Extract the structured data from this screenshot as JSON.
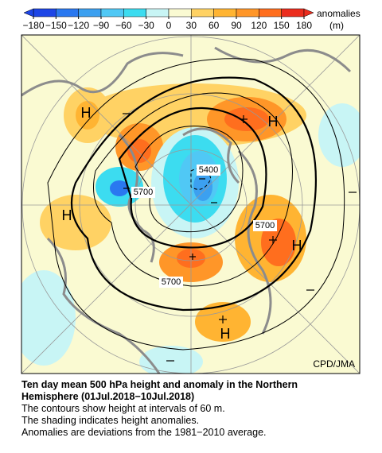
{
  "colorbar": {
    "ticks": [
      {
        "value": -180,
        "label": "−180"
      },
      {
        "value": -150,
        "label": "−150"
      },
      {
        "value": -120,
        "label": "−120"
      },
      {
        "value": -90,
        "label": "−90"
      },
      {
        "value": -60,
        "label": "−60"
      },
      {
        "value": -30,
        "label": "−30"
      },
      0,
      30,
      60,
      90,
      120,
      150,
      180
    ],
    "colors": [
      "#1e46e6",
      "#2a78f0",
      "#3ca0f0",
      "#50c8f5",
      "#3cdcf0",
      "#c8f5f5",
      "#fafad2",
      "#ffd264",
      "#ffb432",
      "#ff9628",
      "#ff6e1e",
      "#eb2d1e"
    ],
    "label": [
      "anomalies",
      "(m)"
    ]
  },
  "map": {
    "highs": [
      "H",
      "H",
      "H",
      "H",
      "H"
    ],
    "contour_labels": [
      "5400",
      "5700",
      "5700",
      "5700"
    ],
    "credit": "CPD/JMA"
  },
  "caption": {
    "title": "Ten day mean 500 hPa height and anomaly in the Northern Hemisphere (01Jul.2018−10Jul.2018)",
    "lines": [
      "The contours show height at intervals of 60 m.",
      "The shading indicates height anomalies.",
      "Anomalies are deviations from the 1981−2010 average."
    ]
  }
}
